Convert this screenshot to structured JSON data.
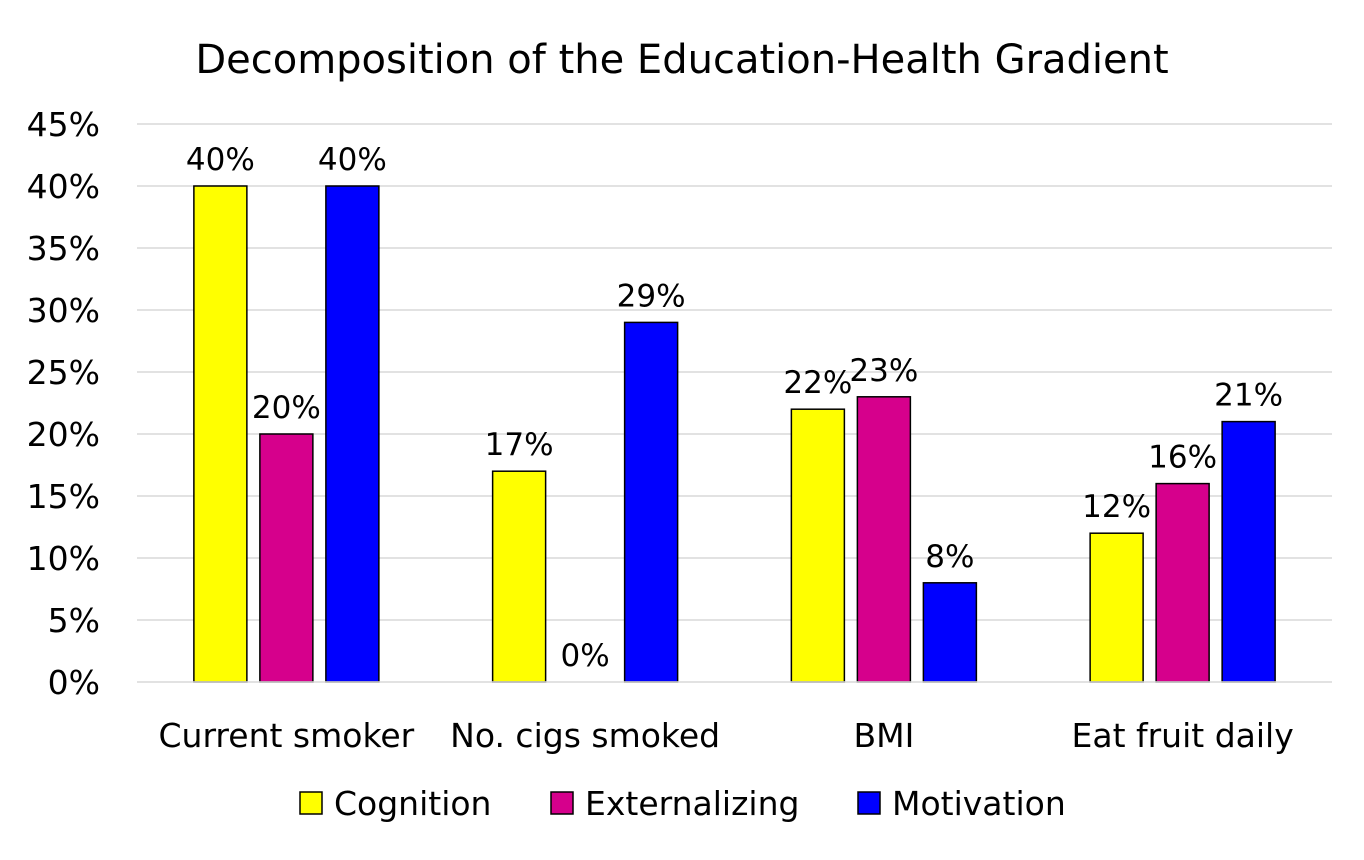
{
  "chart_data": {
    "type": "bar",
    "title": "Decomposition of the Education-Health Gradient",
    "xlabel": "",
    "ylabel": "",
    "categories": [
      "Current smoker",
      "No. cigs smoked",
      "BMI",
      "Eat fruit daily"
    ],
    "series": [
      {
        "name": "Cognition",
        "color": "#FFFF00",
        "values": [
          40,
          17,
          22,
          12
        ]
      },
      {
        "name": "Externalizing",
        "color": "#D6008C",
        "values": [
          20,
          0,
          23,
          16
        ]
      },
      {
        "name": "Motivation",
        "color": "#0000FF",
        "values": [
          40,
          29,
          8,
          21
        ]
      }
    ],
    "data_labels": [
      [
        "40%",
        "17%",
        "22%",
        "12%"
      ],
      [
        "20%",
        "0%",
        "23%",
        "16%"
      ],
      [
        "40%",
        "29%",
        "8%",
        "21%"
      ]
    ],
    "ylim": [
      0,
      45
    ],
    "yticks": [
      0,
      5,
      10,
      15,
      20,
      25,
      30,
      35,
      40,
      45
    ],
    "ytick_labels": [
      "0%",
      "5%",
      "10%",
      "15%",
      "20%",
      "25%",
      "30%",
      "35%",
      "40%",
      "45%"
    ],
    "grid": true,
    "legend_position": "bottom"
  }
}
